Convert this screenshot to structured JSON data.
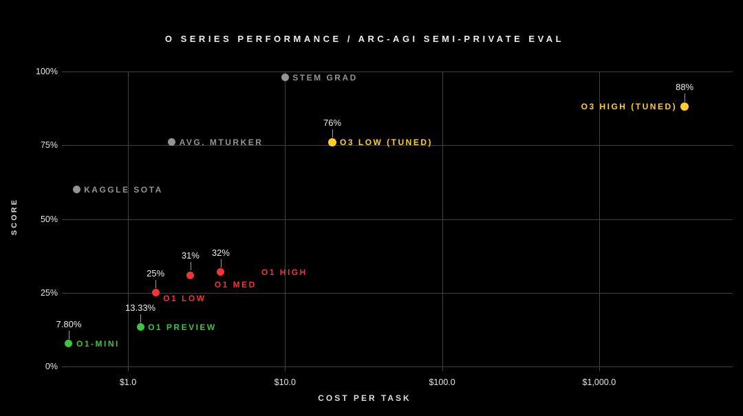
{
  "title": "O SERIES PERFORMANCE / ARC-AGI SEMI-PRIVATE EVAL",
  "colors": {
    "background": "#000000",
    "grid": "#424242",
    "axis_text": "#e6e6e6",
    "annotation_text": "#ececec",
    "leader_line": "#9e9e9e",
    "gray": "#949494",
    "yellow": "#ffd024",
    "red": "#f23434",
    "green": "#3ec43e"
  },
  "chart_data": {
    "type": "scatter",
    "title": "O SERIES PERFORMANCE / ARC-AGI SEMI-PRIVATE EVAL",
    "xlabel": "COST PER TASK",
    "ylabel": "SCORE",
    "x_scale": "log",
    "ylim": [
      0,
      100
    ],
    "grid": true,
    "legend": false,
    "x_ticks": [
      {
        "label": "$1.0",
        "value": 1
      },
      {
        "label": "$10.0",
        "value": 10
      },
      {
        "label": "$100.0",
        "value": 100
      },
      {
        "label": "$1,000.0",
        "value": 1000
      }
    ],
    "y_ticks": [
      {
        "label": "100%",
        "value": 100
      },
      {
        "label": "75%",
        "value": 75
      },
      {
        "label": "50%",
        "value": 50
      },
      {
        "label": "25%",
        "value": 25
      },
      {
        "label": "0%",
        "value": 0
      }
    ],
    "points": [
      {
        "id": "kaggle-sota",
        "label": "KAGGLE SOTA",
        "series": "human-baseline",
        "color": "gray",
        "cost_usd": 0.47,
        "score_pct": 60,
        "annotation": null,
        "label_side": "right"
      },
      {
        "id": "avg-mturker",
        "label": "AVG. MTURKER",
        "series": "human-baseline",
        "color": "gray",
        "cost_usd": 1.9,
        "score_pct": 76,
        "annotation": null,
        "label_side": "right"
      },
      {
        "id": "stem-grad",
        "label": "STEM GRAD",
        "series": "human-baseline",
        "color": "gray",
        "cost_usd": 10,
        "score_pct": 98,
        "annotation": null,
        "label_side": "right"
      },
      {
        "id": "o1-mini",
        "label": "O1-MINI",
        "series": "o1-early",
        "color": "green",
        "cost_usd": 0.42,
        "score_pct": 7.8,
        "annotation": "7.80%",
        "label_side": "right"
      },
      {
        "id": "o1-preview",
        "label": "O1 PREVIEW",
        "series": "o1-early",
        "color": "green",
        "cost_usd": 1.2,
        "score_pct": 13.33,
        "annotation": "13.33%",
        "label_side": "right"
      },
      {
        "id": "o1-low",
        "label": "O1 LOW",
        "series": "o1",
        "color": "red",
        "cost_usd": 1.5,
        "score_pct": 25,
        "annotation": "25%",
        "label_side": "right",
        "label_dy": 8
      },
      {
        "id": "o1-med",
        "label": "O1 MED",
        "series": "o1",
        "color": "red",
        "cost_usd": 2.5,
        "score_pct": 31,
        "annotation": "31%",
        "label_side": "right",
        "label_dx": 24,
        "label_dy": 14
      },
      {
        "id": "o1-high",
        "label": "O1 HIGH",
        "series": "o1",
        "color": "red",
        "cost_usd": 3.9,
        "score_pct": 32,
        "annotation": "32%",
        "label_side": "right",
        "label_dx": 48
      },
      {
        "id": "o3-low-tuned",
        "label": "O3 LOW (TUNED)",
        "series": "o3",
        "color": "yellow",
        "cost_usd": 20,
        "score_pct": 76,
        "annotation": "76%",
        "label_side": "right"
      },
      {
        "id": "o3-high-tuned",
        "label": "O3 HIGH (TUNED)",
        "series": "o3",
        "color": "yellow",
        "cost_usd": 3500,
        "score_pct": 88,
        "annotation": "88%",
        "label_side": "left"
      }
    ]
  }
}
